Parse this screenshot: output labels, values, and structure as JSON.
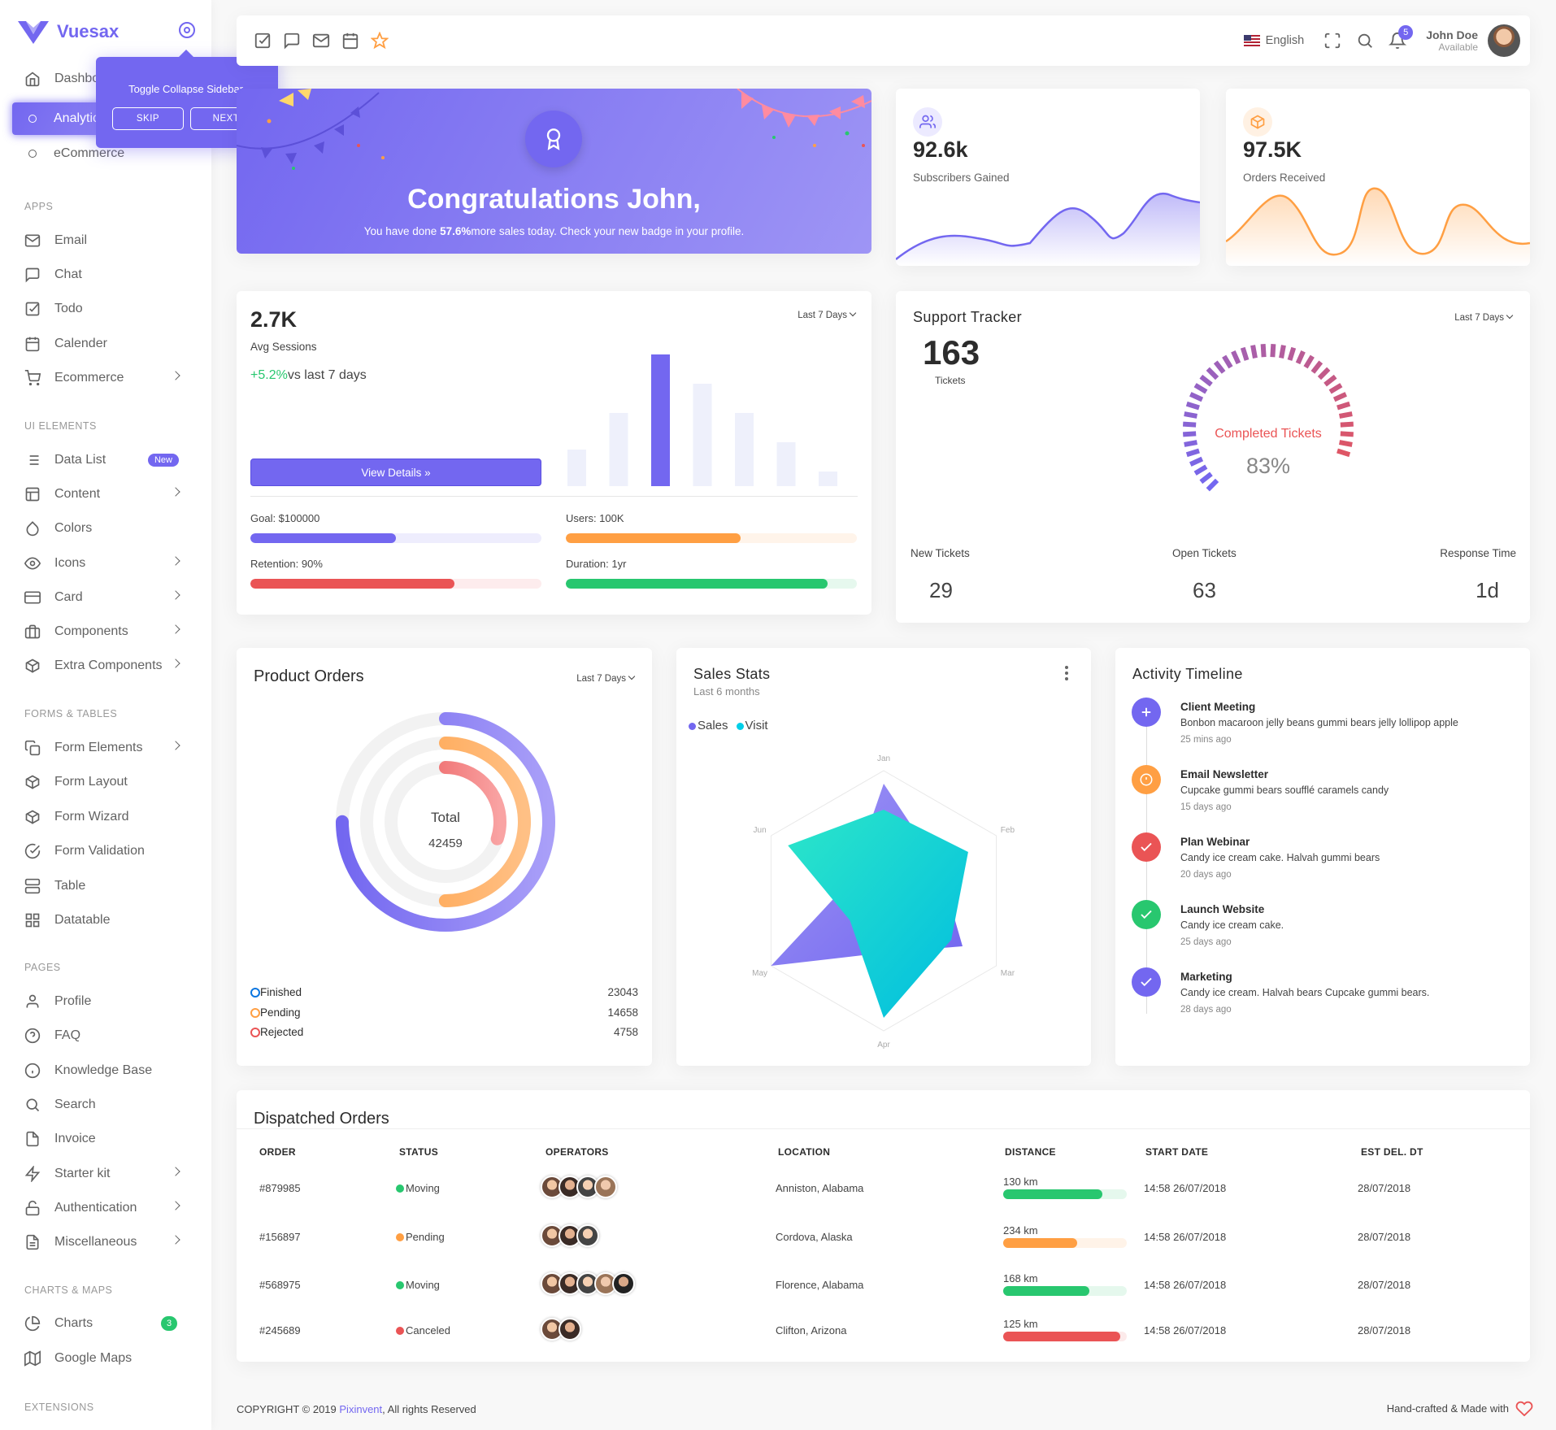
{
  "brand": {
    "name": "Vuesax",
    "color": "#7367f0"
  },
  "tour": {
    "text": "Toggle Collapse Sidebar.",
    "skip": "SKIP",
    "next": "NEXT"
  },
  "sidebar": {
    "items_top": [
      {
        "label": "Dashboard",
        "icon": "home-icon"
      },
      {
        "label": "Analytics",
        "icon": "circle-icon"
      },
      {
        "label": "eCommerce",
        "icon": "circle-icon"
      }
    ],
    "sections": {
      "apps": "APPS",
      "ui": "UI ELEMENTS",
      "forms": "FORMS & TABLES",
      "pages": "PAGES",
      "charts": "CHARTS & MAPS",
      "ext": "EXTENSIONS"
    },
    "apps": [
      "Email",
      "Chat",
      "Todo",
      "Calender",
      "Ecommerce"
    ],
    "ui": [
      "Data List",
      "Content",
      "Colors",
      "Icons",
      "Card",
      "Components",
      "Extra Components"
    ],
    "ui_badge": "New",
    "forms": [
      "Form Elements",
      "Form Layout",
      "Form Wizard",
      "Form Validation",
      "Table",
      "Datatable"
    ],
    "pages": [
      "Profile",
      "FAQ",
      "Knowledge Base",
      "Search",
      "Invoice",
      "Starter kit",
      "Authentication",
      "Miscellaneous"
    ],
    "charts": [
      "Charts",
      "Google Maps"
    ],
    "charts_badge": "3"
  },
  "navbar": {
    "language": "English",
    "notifications": "5",
    "user_name": "John Doe",
    "user_status": "Available"
  },
  "congrats": {
    "title": "Congratulations John,",
    "text_pre": "You have done ",
    "highlight": "57.6%",
    "text_post": "more sales today. Check your new badge in your profile."
  },
  "subscribers": {
    "value": "92.6k",
    "label": "Subscribers Gained"
  },
  "orders": {
    "value": "97.5K",
    "label": "Orders Received"
  },
  "sessions": {
    "value": "2.7K",
    "label": "Avg Sessions",
    "change": "+5.2%",
    "change_suffix": "vs last 7 days",
    "range": "Last 7 Days",
    "button": "View Details",
    "bars": [
      25,
      50,
      90,
      70,
      50,
      30,
      10
    ],
    "goal": "Goal: $100000",
    "goal_pct": 50,
    "users": "Users: 100K",
    "users_pct": 60,
    "retention": "Retention: 90%",
    "retention_pct": 70,
    "duration": "Duration: 1yr",
    "duration_pct": 90
  },
  "support": {
    "title": "Support Tracker",
    "range": "Last 7 Days",
    "value": "163",
    "value_label": "Tickets",
    "gauge_label": "Completed Tickets",
    "gauge_value": "83%",
    "gauge_fraction": 0.83,
    "stats": [
      {
        "label": "New Tickets",
        "value": "29"
      },
      {
        "label": "Open Tickets",
        "value": "63"
      },
      {
        "label": "Response Time",
        "value": "1d"
      }
    ]
  },
  "product": {
    "title": "Product Orders",
    "range": "Last 7 Days",
    "total_label": "Total",
    "total": "42459",
    "rows": [
      {
        "label": "Finished",
        "value": "23043",
        "color": "#0b76e0",
        "pct": 0.75
      },
      {
        "label": "Pending",
        "value": "14658",
        "color": "#ff9f43",
        "pct": 0.5
      },
      {
        "label": "Rejected",
        "value": "4758",
        "color": "#ea5455",
        "pct": 0.3
      }
    ]
  },
  "salesstats": {
    "title": "Sales Stats",
    "subtitle": "Last 6 months",
    "legend": [
      {
        "label": "Sales",
        "color": "#7367f0"
      },
      {
        "label": "Visit",
        "color": "#00cfe8"
      }
    ],
    "axes": [
      "Jan",
      "Feb",
      "Mar",
      "Apr",
      "May",
      "Jun"
    ],
    "sales": [
      90,
      50,
      70,
      40,
      100,
      30
    ],
    "visit": [
      70,
      75,
      60,
      90,
      30,
      85
    ]
  },
  "timeline": {
    "title": "Activity Timeline",
    "items": [
      {
        "title": "Client Meeting",
        "desc": "Bonbon macaroon jelly beans gummi bears jelly lollipop apple",
        "time": "25 mins ago",
        "color": "#7367f0",
        "icon": "plus-icon"
      },
      {
        "title": "Email Newsletter",
        "desc": "Cupcake gummi bears soufflé caramels candy",
        "time": "15 days ago",
        "color": "#ff9f43",
        "icon": "alert-icon"
      },
      {
        "title": "Plan Webinar",
        "desc": "Candy ice cream cake. Halvah gummi bears",
        "time": "20 days ago",
        "color": "#ea5455",
        "icon": "check-icon"
      },
      {
        "title": "Launch Website",
        "desc": "Candy ice cream cake.",
        "time": "25 days ago",
        "color": "#28c76f",
        "icon": "check-icon"
      },
      {
        "title": "Marketing",
        "desc": "Candy ice cream. Halvah bears Cupcake gummi bears.",
        "time": "28 days ago",
        "color": "#7367f0",
        "icon": "check-icon"
      }
    ]
  },
  "dispatched": {
    "title": "Dispatched Orders",
    "columns": [
      "ORDER",
      "STATUS",
      "OPERATORS",
      "LOCATION",
      "DISTANCE",
      "START DATE",
      "EST DEL. DT"
    ],
    "rows": [
      {
        "order": "#879985",
        "status": "Moving",
        "status_color": "#28c76f",
        "operators": 4,
        "location": "Anniston, Alabama",
        "distance": "130 km",
        "dist_pct": 80,
        "dist_color": "#28c76f",
        "start": "14:58 26/07/2018",
        "est": "28/07/2018"
      },
      {
        "order": "#156897",
        "status": "Pending",
        "status_color": "#ff9f43",
        "operators": 3,
        "location": "Cordova, Alaska",
        "distance": "234 km",
        "dist_pct": 60,
        "dist_color": "#ff9f43",
        "start": "14:58 26/07/2018",
        "est": "28/07/2018"
      },
      {
        "order": "#568975",
        "status": "Moving",
        "status_color": "#28c76f",
        "operators": 5,
        "location": "Florence, Alabama",
        "distance": "168 km",
        "dist_pct": 70,
        "dist_color": "#28c76f",
        "start": "14:58 26/07/2018",
        "est": "28/07/2018"
      },
      {
        "order": "#245689",
        "status": "Canceled",
        "status_color": "#ea5455",
        "operators": 2,
        "location": "Clifton, Arizona",
        "distance": "125 km",
        "dist_pct": 95,
        "dist_color": "#ea5455",
        "start": "14:58 26/07/2018",
        "est": "28/07/2018"
      }
    ]
  },
  "footer": {
    "copy": "COPYRIGHT © 2019 ",
    "link": "Pixinvent",
    "rights": ", All rights Reserved",
    "right": "Hand-crafted & Made with"
  }
}
